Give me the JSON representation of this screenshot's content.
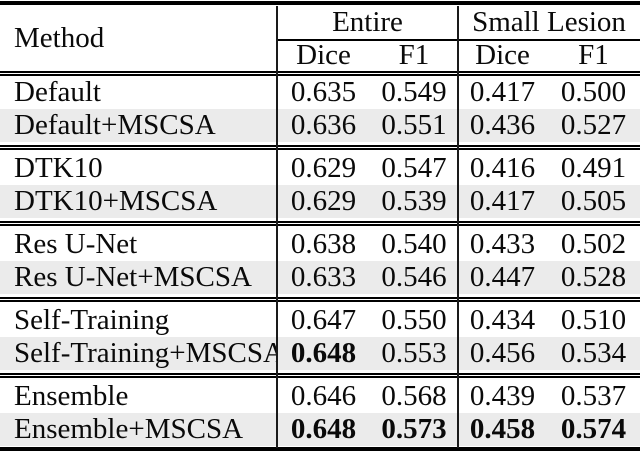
{
  "table": {
    "method_header": "Method",
    "group_headers": [
      {
        "label": "Entire"
      },
      {
        "label": "Small Lesion"
      }
    ],
    "sub_headers": [
      "Dice",
      "F1",
      "Dice",
      "F1"
    ],
    "groups": [
      {
        "rows": [
          {
            "method": "Default",
            "values": [
              "0.635",
              "0.549",
              "0.417",
              "0.500"
            ],
            "bold": [
              false,
              false,
              false,
              false
            ],
            "shaded": false
          },
          {
            "method": "Default+MSCSA",
            "values": [
              "0.636",
              "0.551",
              "0.436",
              "0.527"
            ],
            "bold": [
              false,
              false,
              false,
              false
            ],
            "shaded": true
          }
        ]
      },
      {
        "rows": [
          {
            "method": "DTK10",
            "values": [
              "0.629",
              "0.547",
              "0.416",
              "0.491"
            ],
            "bold": [
              false,
              false,
              false,
              false
            ],
            "shaded": false
          },
          {
            "method": "DTK10+MSCSA",
            "values": [
              "0.629",
              "0.539",
              "0.417",
              "0.505"
            ],
            "bold": [
              false,
              false,
              false,
              false
            ],
            "shaded": true
          }
        ]
      },
      {
        "rows": [
          {
            "method": "Res U-Net",
            "values": [
              "0.638",
              "0.540",
              "0.433",
              "0.502"
            ],
            "bold": [
              false,
              false,
              false,
              false
            ],
            "shaded": false
          },
          {
            "method": "Res U-Net+MSCSA",
            "values": [
              "0.633",
              "0.546",
              "0.447",
              "0.528"
            ],
            "bold": [
              false,
              false,
              false,
              false
            ],
            "shaded": true
          }
        ]
      },
      {
        "rows": [
          {
            "method": "Self-Training",
            "values": [
              "0.647",
              "0.550",
              "0.434",
              "0.510"
            ],
            "bold": [
              false,
              false,
              false,
              false
            ],
            "shaded": false
          },
          {
            "method": "Self-Training+MSCSA",
            "values": [
              "0.648",
              "0.553",
              "0.456",
              "0.534"
            ],
            "bold": [
              true,
              false,
              false,
              false
            ],
            "shaded": true
          }
        ]
      },
      {
        "rows": [
          {
            "method": "Ensemble",
            "values": [
              "0.646",
              "0.568",
              "0.439",
              "0.537"
            ],
            "bold": [
              false,
              false,
              false,
              false
            ],
            "shaded": false
          },
          {
            "method": "Ensemble+MSCSA",
            "values": [
              "0.648",
              "0.573",
              "0.458",
              "0.574"
            ],
            "bold": [
              true,
              true,
              true,
              true
            ],
            "shaded": true
          }
        ]
      }
    ]
  },
  "colors": {
    "row_shade": "#ebebeb",
    "rule": "#000000",
    "text": "#0a0a0a"
  }
}
